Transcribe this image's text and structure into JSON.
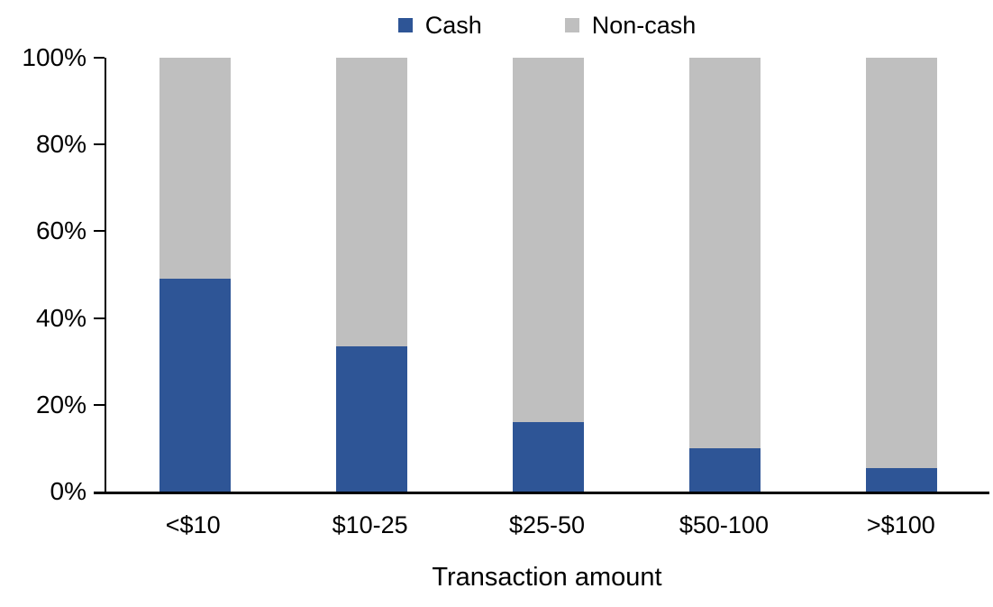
{
  "chart_data": {
    "type": "bar",
    "variant": "stacked-100-percent-column",
    "title": "",
    "xlabel": "Transaction amount",
    "ylabel": "",
    "categories": [
      "<$10",
      "$10-25",
      "$25-50",
      "$50-100",
      ">$100"
    ],
    "series": [
      {
        "name": "Cash",
        "color": "#2E5596",
        "values": [
          49,
          33.5,
          16,
          10,
          5.5
        ]
      },
      {
        "name": "Non-cash",
        "color": "#BFBFBF",
        "values": [
          51,
          66.5,
          84,
          90,
          94.5
        ]
      }
    ],
    "ylim": [
      0,
      100
    ],
    "yticks": [
      {
        "value": 0,
        "label": "0%"
      },
      {
        "value": 20,
        "label": "20%"
      },
      {
        "value": 40,
        "label": "40%"
      },
      {
        "value": 60,
        "label": "60%"
      },
      {
        "value": 80,
        "label": "80%"
      },
      {
        "value": 100,
        "label": "100%"
      }
    ],
    "legend_position": "top-center",
    "grid": false,
    "axis_color": "#000000",
    "text_color": "#000000",
    "background_color": "#FFFFFF"
  }
}
